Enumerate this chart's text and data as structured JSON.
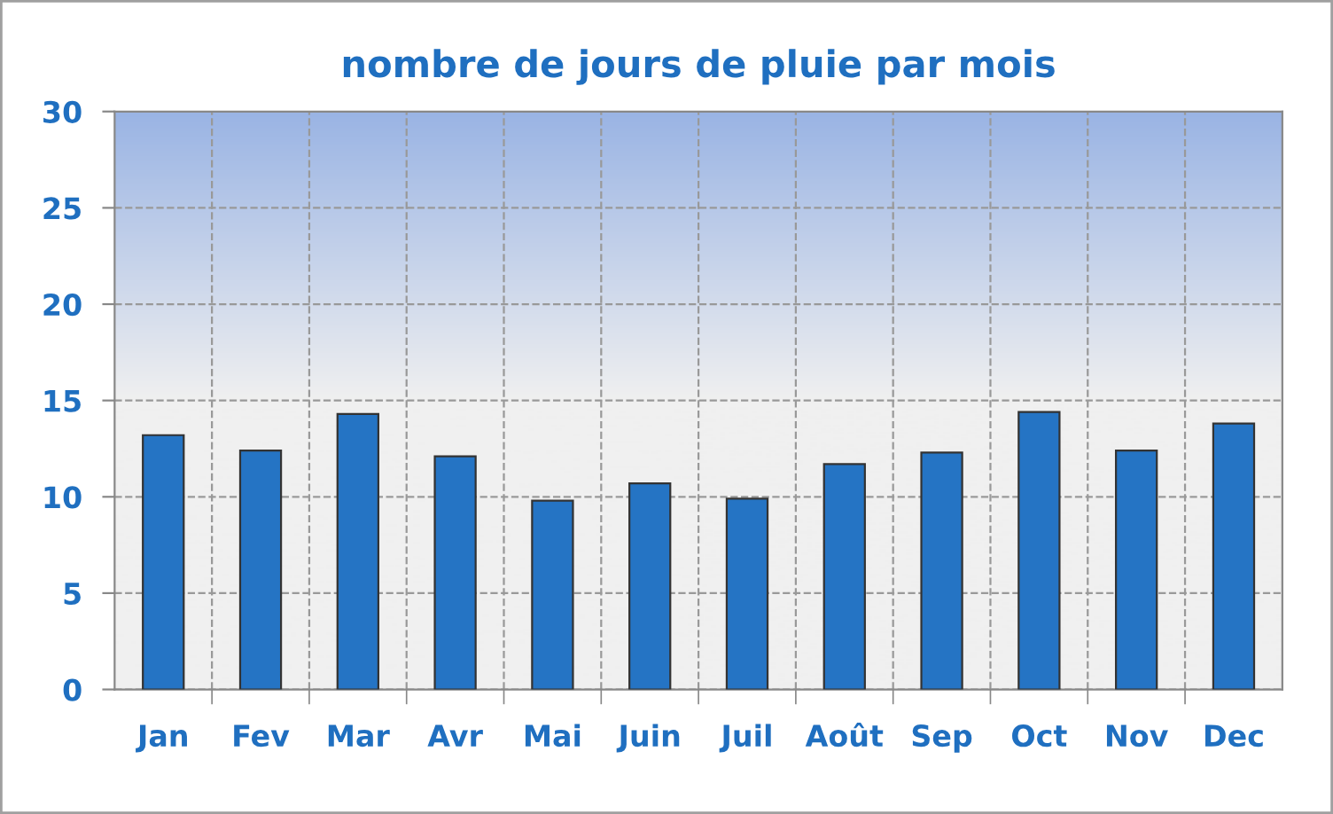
{
  "chart_data": {
    "type": "bar",
    "title": "nombre de jours de pluie par mois",
    "categories": [
      "Jan",
      "Fev",
      "Mar",
      "Avr",
      "Mai",
      "Juin",
      "Juil",
      "Août",
      "Sep",
      "Oct",
      "Nov",
      "Dec"
    ],
    "values": [
      13.2,
      12.4,
      14.3,
      12.1,
      9.8,
      10.7,
      9.9,
      11.7,
      12.3,
      14.4,
      12.4,
      13.8
    ],
    "color": "#2574c4",
    "ylim": [
      0,
      30
    ],
    "yticks": [
      0,
      5,
      10,
      15,
      20,
      25,
      30
    ],
    "grid": true
  }
}
